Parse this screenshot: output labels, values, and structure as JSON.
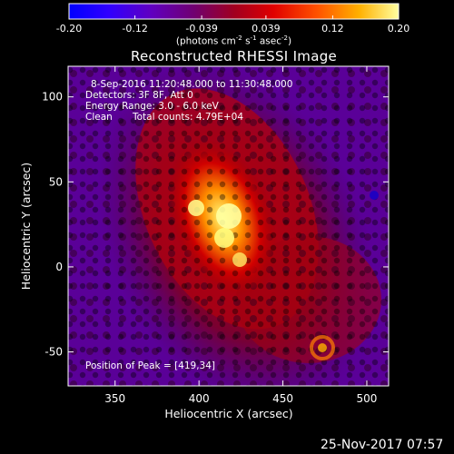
{
  "colorbar": {
    "ticks": [
      "-0.20",
      "-0.12",
      "-0.039",
      "0.039",
      "0.12",
      "0.20"
    ],
    "tick_values": [
      -0.2,
      -0.12,
      -0.039,
      0.039,
      0.12,
      0.2
    ],
    "range": [
      -0.2,
      0.2
    ],
    "unit_prefix": "(photons cm",
    "unit_exp1": "-2",
    "unit_mid1": " s",
    "unit_exp2": "-1",
    "unit_mid2": " asec",
    "unit_exp3": "-2",
    "unit_suffix": ")"
  },
  "chart_data": {
    "type": "heatmap",
    "title": "Reconstructed RHESSI Image",
    "xlabel": "Heliocentric X (arcsec)",
    "ylabel": "Heliocentric Y (arcsec)",
    "xlim": [
      322,
      513
    ],
    "ylim": [
      -70,
      118
    ],
    "xticks": [
      350,
      400,
      450,
      500
    ],
    "yticks": [
      -50,
      0,
      50,
      100
    ],
    "peak": [
      419,
      34
    ],
    "colormap": [
      "#1a00ff",
      "#5a00a8",
      "#7a0060",
      "#c00000",
      "#ff5000",
      "#ffc000",
      "#ffffc0"
    ],
    "annotations": {
      "time": "8-Sep-2016 11:20:48.000 to 11:30:48.000",
      "detectors": "Detectors: 3F 8F, Att 0",
      "energy": "Energy Range: 3.0 - 6.0 keV",
      "method": "Clean",
      "counts": "Total counts: 4.79E+04",
      "peak_position": "Position of Peak = [419,34]"
    }
  },
  "date_stamp": "25-Nov-2017 07:57"
}
